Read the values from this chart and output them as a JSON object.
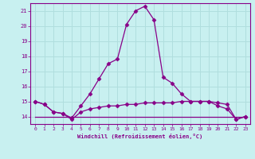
{
  "xlabel": "Windchill (Refroidissement éolien,°C)",
  "bg_color": "#c8f0f0",
  "grid_color": "#b0dede",
  "line_color": "#880088",
  "hours": [
    0,
    1,
    2,
    3,
    4,
    5,
    6,
    7,
    8,
    9,
    10,
    11,
    12,
    13,
    14,
    15,
    16,
    17,
    18,
    19,
    20,
    21,
    22,
    23
  ],
  "temp": [
    15.0,
    14.8,
    14.3,
    14.2,
    13.9,
    14.7,
    15.5,
    16.5,
    17.5,
    17.8,
    20.1,
    21.0,
    21.3,
    20.4,
    16.6,
    16.2,
    15.5,
    15.0,
    15.0,
    15.0,
    14.7,
    14.5,
    13.8,
    14.0
  ],
  "windchill": [
    15.0,
    14.8,
    14.3,
    14.2,
    13.8,
    14.3,
    14.5,
    14.6,
    14.7,
    14.7,
    14.8,
    14.8,
    14.9,
    14.9,
    14.9,
    14.9,
    15.0,
    15.0,
    15.0,
    15.0,
    14.9,
    14.8,
    13.8,
    14.0
  ],
  "dew": [
    14.0,
    14.0,
    14.0,
    14.0,
    14.0,
    14.0,
    14.0,
    14.0,
    14.0,
    14.0,
    14.0,
    14.0,
    14.0,
    14.0,
    14.0,
    14.0,
    14.0,
    14.0,
    14.0,
    14.0,
    14.0,
    14.0,
    14.0,
    14.0
  ],
  "ylim": [
    13.5,
    21.5
  ],
  "yticks": [
    14,
    15,
    16,
    17,
    18,
    19,
    20,
    21
  ],
  "xlim": [
    -0.5,
    23.5
  ]
}
